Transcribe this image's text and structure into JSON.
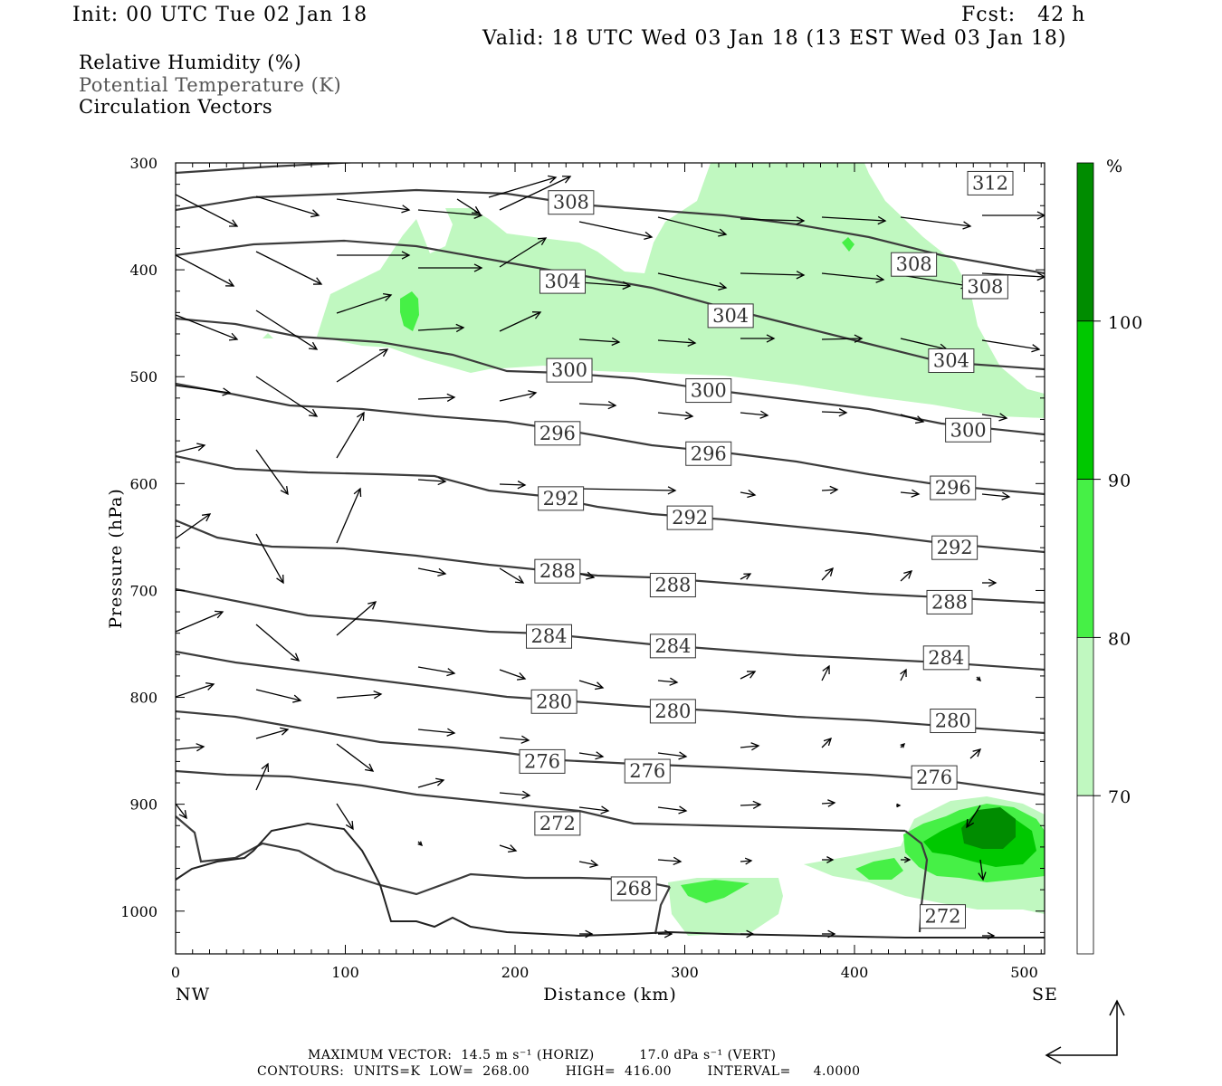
{
  "header": {
    "init": "Init: 00 UTC Tue 02 Jan 18",
    "fcst": "Fcst:   42 h",
    "valid": "Valid: 18 UTC Wed 03 Jan 18 (13 EST Wed 03 Jan 18)"
  },
  "legend": {
    "rh": "Relative Humidity (%)",
    "theta": "Potential Temperature (K)",
    "vectors": "Circulation Vectors"
  },
  "footer": {
    "max_vector": "MAXIMUM VECTOR:  14.5 m s⁻¹ (HORIZ)          17.0 dPa s⁻¹ (VERT)",
    "contours": "CONTOURS:  UNITS=K  LOW=  268.00        HIGH=  416.00        INTERVAL=     4.0000"
  },
  "colors": {
    "rh70": "#c0f8c0",
    "rh80": "#46f046",
    "rh90": "#00c800",
    "rh100": "#008c00",
    "contour": "#3c3c3c"
  },
  "chart_data": {
    "type": "cross-section",
    "title": "",
    "xlabel": "Distance (km)",
    "ylabel": "Pressure (hPa)",
    "xlim": [
      0,
      512
    ],
    "ylim": [
      1040,
      300
    ],
    "x_ticks": [
      0,
      100,
      200,
      300,
      400,
      500
    ],
    "y_ticks": [
      300,
      400,
      500,
      600,
      700,
      800,
      900,
      1000
    ],
    "x_end_labels": {
      "left": "NW",
      "right": "SE"
    },
    "colorbar": {
      "unit": "%",
      "levels": [
        70,
        80,
        90,
        100
      ]
    },
    "contour_labels": [
      {
        "value": "312",
        "x": 480,
        "p": 319
      },
      {
        "value": "308",
        "x": 233,
        "p": 337
      },
      {
        "value": "308",
        "x": 435,
        "p": 395
      },
      {
        "value": "308",
        "x": 477,
        "p": 416
      },
      {
        "value": "304",
        "x": 228,
        "p": 411
      },
      {
        "value": "304",
        "x": 327,
        "p": 443
      },
      {
        "value": "304",
        "x": 457,
        "p": 485
      },
      {
        "value": "300",
        "x": 232,
        "p": 494
      },
      {
        "value": "300",
        "x": 314,
        "p": 513
      },
      {
        "value": "300",
        "x": 467,
        "p": 550
      },
      {
        "value": "296",
        "x": 225,
        "p": 553
      },
      {
        "value": "296",
        "x": 314,
        "p": 572
      },
      {
        "value": "296",
        "x": 458,
        "p": 604
      },
      {
        "value": "292",
        "x": 227,
        "p": 614
      },
      {
        "value": "292",
        "x": 303,
        "p": 632
      },
      {
        "value": "292",
        "x": 459,
        "p": 660
      },
      {
        "value": "288",
        "x": 225,
        "p": 682
      },
      {
        "value": "288",
        "x": 293,
        "p": 695
      },
      {
        "value": "288",
        "x": 456,
        "p": 711
      },
      {
        "value": "284",
        "x": 220,
        "p": 743
      },
      {
        "value": "284",
        "x": 293,
        "p": 752
      },
      {
        "value": "284",
        "x": 454,
        "p": 763
      },
      {
        "value": "280",
        "x": 223,
        "p": 804
      },
      {
        "value": "280",
        "x": 293,
        "p": 813
      },
      {
        "value": "280",
        "x": 458,
        "p": 822
      },
      {
        "value": "276",
        "x": 216,
        "p": 860
      },
      {
        "value": "276",
        "x": 278,
        "p": 869
      },
      {
        "value": "276",
        "x": 447,
        "p": 875
      },
      {
        "value": "272",
        "x": 225,
        "p": 918
      },
      {
        "value": "272",
        "x": 452,
        "p": 1005
      },
      {
        "value": "268",
        "x": 270,
        "p": 979
      }
    ]
  }
}
